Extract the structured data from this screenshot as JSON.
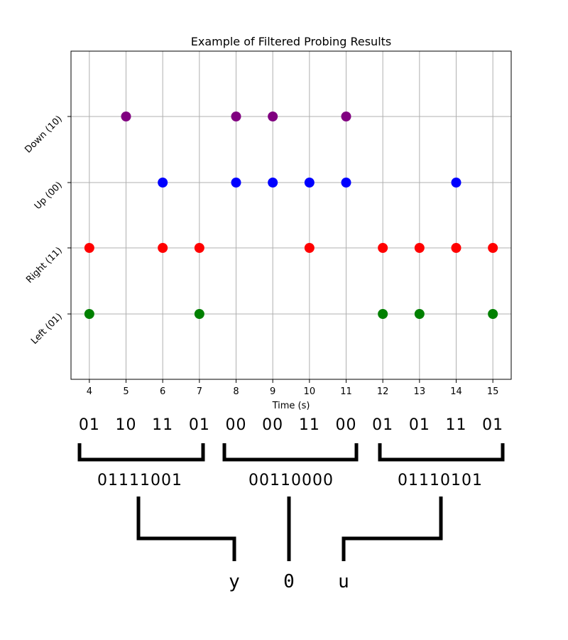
{
  "chart_data": {
    "type": "scatter",
    "title": "Example of Filtered Probing Results",
    "xlabel": "Time (s)",
    "ylabel": "",
    "x_ticks": [
      4,
      5,
      6,
      7,
      8,
      9,
      10,
      11,
      12,
      13,
      14,
      15
    ],
    "xlim": [
      3.5,
      15.5
    ],
    "y_categories": [
      "Left (01)",
      "Right (11)",
      "Up (00)",
      "Down (10)"
    ],
    "grid": true,
    "series": [
      {
        "color": "#008000",
        "category": "Left (01)",
        "x": [
          4,
          7,
          12,
          13,
          15
        ]
      },
      {
        "color": "#ff0000",
        "category": "Right (11)",
        "x": [
          4,
          6,
          7,
          10,
          12,
          13,
          14,
          15
        ]
      },
      {
        "color": "#0000ff",
        "category": "Up (00)",
        "x": [
          6,
          8,
          9,
          10,
          11,
          14
        ]
      },
      {
        "color": "#800080",
        "category": "Down (10)",
        "x": [
          5,
          8,
          9,
          11
        ]
      }
    ]
  },
  "decoding": {
    "bit_pairs": [
      "01",
      "10",
      "11",
      "01",
      "00",
      "00",
      "11",
      "00",
      "01",
      "01",
      "11",
      "01"
    ],
    "bytes": [
      "01111001",
      "00110000",
      "01110101"
    ],
    "characters": [
      "y",
      "0",
      "u"
    ]
  }
}
